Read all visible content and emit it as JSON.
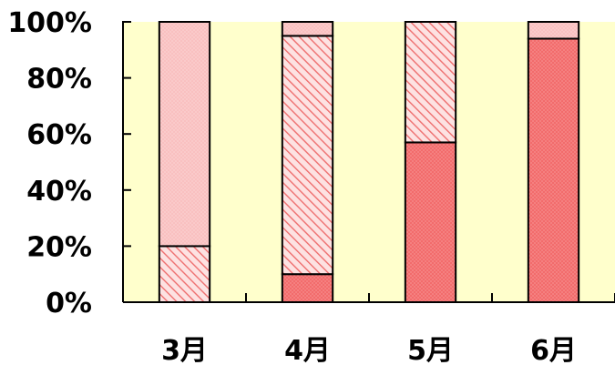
{
  "chart_data": {
    "type": "bar",
    "stacked": true,
    "normalized": true,
    "categories": [
      "3月",
      "4月",
      "5月",
      "6月"
    ],
    "series": [
      {
        "values": [
          0,
          10,
          57,
          94
        ],
        "color": "#f07878",
        "pattern": "dots-dense"
      },
      {
        "values": [
          20,
          85,
          43,
          0
        ],
        "color": "#f08a8a",
        "pattern": "diagonal-hatch"
      },
      {
        "values": [
          80,
          5,
          0,
          6
        ],
        "color": "#f7b4b4",
        "pattern": "dots-light"
      }
    ],
    "yticks": [
      "0%",
      "20%",
      "40%",
      "60%",
      "80%",
      "100%"
    ],
    "ylim": [
      0,
      100
    ],
    "plot_background": "#ffffcc",
    "legend": "none",
    "grid": false
  }
}
